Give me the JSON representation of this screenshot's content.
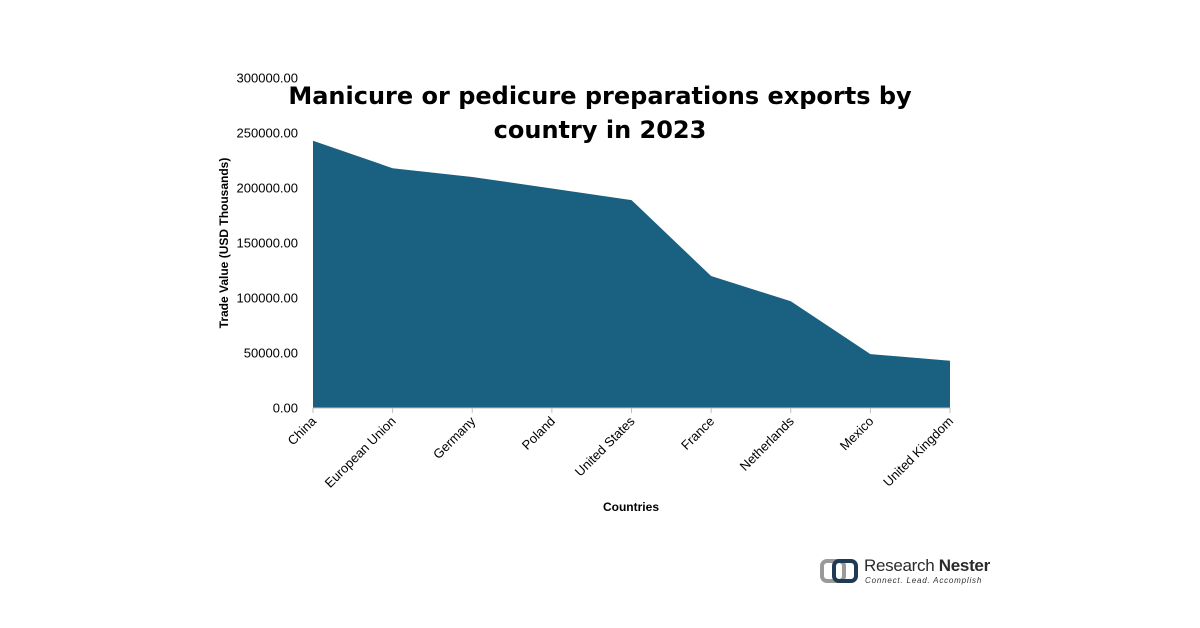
{
  "chart_data": {
    "type": "area",
    "title_lines": [
      "Manicure or pedicure preparations exports by",
      "country in 2023"
    ],
    "xlabel": "Countries",
    "ylabel": "Trade Value (USD Thousands)",
    "categories": [
      "China",
      "European Union",
      "Germany",
      "Poland",
      "United States",
      "France",
      "Netherlands",
      "Mexico",
      "United Kingdom"
    ],
    "values": [
      243000,
      218000,
      210000,
      199500,
      189000,
      120000,
      97000,
      49000,
      43000
    ],
    "ylim": [
      0,
      300000
    ],
    "yticks": [
      "0.00",
      "50000.00",
      "100000.00",
      "150000.00",
      "200000.00",
      "250000.00",
      "300000.00"
    ],
    "ytick_values": [
      0,
      50000,
      100000,
      150000,
      200000,
      250000,
      300000
    ],
    "grid": false,
    "fill_color": "#1a6080"
  },
  "logo": {
    "name_part1": "Research ",
    "name_part2": "Nester",
    "tagline": "Connect. Lead. Accomplish",
    "colors": [
      "#9a9a9a",
      "#1f3a52"
    ]
  }
}
